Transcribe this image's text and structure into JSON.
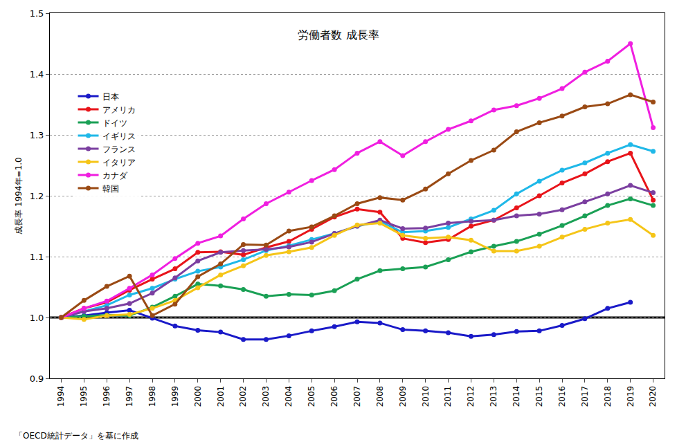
{
  "chart_data": {
    "type": "line",
    "title": "労働者数 成長率",
    "y_label": "成長率 1994年=1.0",
    "source": "「OECD統計データ」を基に作成",
    "categories": [
      "1994",
      "1995",
      "1996",
      "1997",
      "1998",
      "1999",
      "2000",
      "2001",
      "2002",
      "2003",
      "2004",
      "2005",
      "2006",
      "2007",
      "2008",
      "2009",
      "2010",
      "2011",
      "2012",
      "2013",
      "2014",
      "2015",
      "2016",
      "2017",
      "2018",
      "2019",
      "2020"
    ],
    "series": [
      {
        "name": "日本",
        "color": "#1a1ac8",
        "values": [
          1.0,
          1.003,
          1.008,
          1.012,
          0.999,
          0.986,
          0.979,
          0.976,
          0.964,
          0.964,
          0.97,
          0.978,
          0.985,
          0.993,
          0.991,
          0.98,
          0.978,
          0.975,
          0.969,
          0.972,
          0.977,
          0.978,
          0.987,
          0.998,
          1.015,
          1.025,
          null
        ]
      },
      {
        "name": "アメリカ",
        "color": "#e8141a",
        "values": [
          1.0,
          1.015,
          1.025,
          1.045,
          1.063,
          1.08,
          1.107,
          1.108,
          1.103,
          1.115,
          1.125,
          1.145,
          1.165,
          1.178,
          1.173,
          1.13,
          1.123,
          1.128,
          1.15,
          1.16,
          1.18,
          1.2,
          1.221,
          1.236,
          1.256,
          1.27,
          1.193
        ]
      },
      {
        "name": "ドイツ",
        "color": "#1aa055",
        "values": [
          1.0,
          1.002,
          1.004,
          1.003,
          1.017,
          1.035,
          1.055,
          1.052,
          1.046,
          1.035,
          1.038,
          1.037,
          1.044,
          1.063,
          1.077,
          1.08,
          1.083,
          1.095,
          1.108,
          1.117,
          1.125,
          1.137,
          1.151,
          1.167,
          1.184,
          1.195,
          1.184
        ]
      },
      {
        "name": "イギリス",
        "color": "#1fb8e8",
        "values": [
          1.0,
          1.01,
          1.02,
          1.037,
          1.048,
          1.063,
          1.076,
          1.083,
          1.095,
          1.11,
          1.118,
          1.128,
          1.138,
          1.15,
          1.158,
          1.14,
          1.142,
          1.148,
          1.162,
          1.176,
          1.203,
          1.224,
          1.242,
          1.254,
          1.27,
          1.284,
          1.273
        ]
      },
      {
        "name": "フランス",
        "color": "#7b3fa0",
        "values": [
          1.0,
          1.01,
          1.015,
          1.023,
          1.04,
          1.065,
          1.093,
          1.107,
          1.11,
          1.112,
          1.116,
          1.124,
          1.138,
          1.15,
          1.16,
          1.146,
          1.147,
          1.155,
          1.158,
          1.16,
          1.167,
          1.17,
          1.177,
          1.19,
          1.203,
          1.217,
          1.205
        ]
      },
      {
        "name": "イタリア",
        "color": "#f5c518",
        "values": [
          1.0,
          0.997,
          1.003,
          1.005,
          1.015,
          1.028,
          1.049,
          1.07,
          1.085,
          1.102,
          1.108,
          1.115,
          1.135,
          1.152,
          1.155,
          1.135,
          1.13,
          1.132,
          1.127,
          1.109,
          1.109,
          1.117,
          1.132,
          1.145,
          1.155,
          1.161,
          1.135
        ]
      },
      {
        "name": "カナダ",
        "color": "#f01fe0",
        "values": [
          1.0,
          1.015,
          1.027,
          1.048,
          1.07,
          1.097,
          1.122,
          1.134,
          1.162,
          1.187,
          1.206,
          1.225,
          1.243,
          1.27,
          1.289,
          1.266,
          1.289,
          1.309,
          1.323,
          1.341,
          1.348,
          1.36,
          1.376,
          1.403,
          1.421,
          1.45,
          1.312
        ]
      },
      {
        "name": "韓国",
        "color": "#9a4a14",
        "values": [
          1.0,
          1.028,
          1.051,
          1.068,
          1.003,
          1.022,
          1.067,
          1.088,
          1.12,
          1.119,
          1.142,
          1.149,
          1.167,
          1.187,
          1.197,
          1.193,
          1.211,
          1.236,
          1.258,
          1.275,
          1.305,
          1.32,
          1.331,
          1.346,
          1.351,
          1.366,
          1.354
        ]
      }
    ],
    "ylim": [
      0.9,
      1.5
    ],
    "yticks": [
      0.9,
      {
        "value": 1,
        "label": "1.0"
      },
      1.1,
      1.2,
      1.3,
      1.4,
      1.5
    ],
    "hline": 1,
    "grid": true,
    "legend": "upper left",
    "marker": "circle"
  }
}
